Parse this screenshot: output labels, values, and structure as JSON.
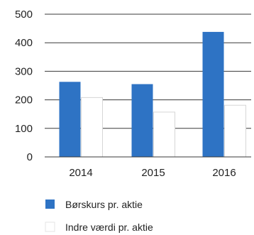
{
  "chart_data": {
    "type": "bar",
    "title": "",
    "xlabel": "",
    "ylabel": "",
    "categories": [
      "2014",
      "2015",
      "2016"
    ],
    "series": [
      {
        "name": "Børskurs pr. aktie",
        "values": [
          263,
          255,
          438
        ],
        "color": "#2e73c4"
      },
      {
        "name": "Indre værdi pr. aktie",
        "values": [
          208,
          157,
          181
        ],
        "color": "#ffffff"
      }
    ],
    "ylim": [
      0,
      500
    ],
    "yticks": [
      0,
      100,
      200,
      300,
      400,
      500
    ],
    "grid": true,
    "legend": "bottom-left"
  }
}
